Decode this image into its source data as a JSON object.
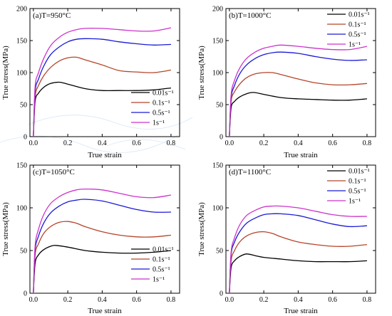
{
  "figure": {
    "background": "#ffffff",
    "series_colors": [
      "#000000",
      "#b5452a",
      "#1a1ad6",
      "#cc33cc"
    ],
    "watermark_color": "#b8d4f0"
  },
  "chart_data": [
    {
      "type": "line",
      "title": "(a)T=950°C",
      "xlabel": "True strain",
      "ylabel": "True stress(MPa)",
      "xlim": [
        -0.02,
        0.85
      ],
      "ylim": [
        0,
        200
      ],
      "xticks": [
        0.0,
        0.2,
        0.4,
        0.6,
        0.8
      ],
      "xtick_labels": [
        "0.0",
        "0.2",
        "0.4",
        "0.6",
        "0.8"
      ],
      "yticks": [
        0,
        50,
        100,
        150,
        200
      ],
      "ytick_labels": [
        "0",
        "50",
        "100",
        "150",
        "200"
      ],
      "legend_position": "bottom-right",
      "series": [
        {
          "name": "0.01s⁻¹",
          "color": "#000000",
          "x": [
            0.0,
            0.01,
            0.03,
            0.06,
            0.1,
            0.15,
            0.2,
            0.3,
            0.4,
            0.5,
            0.6,
            0.7,
            0.8
          ],
          "y": [
            0,
            55,
            68,
            77,
            83,
            85,
            82,
            75,
            72,
            72,
            72,
            73,
            76
          ]
        },
        {
          "name": "0.1s⁻¹",
          "color": "#b5452a",
          "x": [
            0.0,
            0.01,
            0.03,
            0.06,
            0.1,
            0.15,
            0.2,
            0.25,
            0.3,
            0.4,
            0.5,
            0.6,
            0.7,
            0.8
          ],
          "y": [
            0,
            62,
            80,
            95,
            108,
            118,
            123,
            124,
            120,
            112,
            103,
            101,
            100,
            104
          ]
        },
        {
          "name": "0.5s⁻¹",
          "color": "#1a1ad6",
          "x": [
            0.0,
            0.01,
            0.03,
            0.06,
            0.1,
            0.15,
            0.2,
            0.25,
            0.3,
            0.4,
            0.5,
            0.6,
            0.7,
            0.8
          ],
          "y": [
            0,
            70,
            90,
            110,
            128,
            140,
            148,
            152,
            153,
            152,
            148,
            145,
            143,
            144
          ]
        },
        {
          "name": "1s⁻¹",
          "color": "#cc33cc",
          "x": [
            0.0,
            0.01,
            0.03,
            0.06,
            0.1,
            0.15,
            0.2,
            0.25,
            0.3,
            0.4,
            0.5,
            0.6,
            0.7,
            0.8
          ],
          "y": [
            0,
            78,
            100,
            122,
            142,
            155,
            163,
            167,
            169,
            169,
            167,
            165,
            165,
            170
          ]
        }
      ]
    },
    {
      "type": "line",
      "title": "(b)T=1000°C",
      "xlabel": "True strain",
      "ylabel": "True stress(MPa)",
      "xlim": [
        -0.02,
        0.85
      ],
      "ylim": [
        0,
        200
      ],
      "xticks": [
        0.0,
        0.2,
        0.4,
        0.6,
        0.8
      ],
      "xtick_labels": [
        "0.0",
        "0.2",
        "0.4",
        "0.6",
        "0.8"
      ],
      "yticks": [
        0,
        50,
        100,
        150,
        200
      ],
      "ytick_labels": [
        "0",
        "50",
        "100",
        "150",
        "200"
      ],
      "legend_position": "top-right",
      "series": [
        {
          "name": "0.01s⁻¹",
          "color": "#000000",
          "x": [
            0.0,
            0.01,
            0.03,
            0.06,
            0.1,
            0.14,
            0.2,
            0.3,
            0.4,
            0.5,
            0.6,
            0.7,
            0.8
          ],
          "y": [
            0,
            45,
            55,
            62,
            67,
            69,
            66,
            61,
            59,
            58,
            57,
            57,
            59
          ]
        },
        {
          "name": "0.1s⁻¹",
          "color": "#b5452a",
          "x": [
            0.0,
            0.01,
            0.03,
            0.06,
            0.1,
            0.15,
            0.2,
            0.25,
            0.3,
            0.4,
            0.5,
            0.6,
            0.7,
            0.8
          ],
          "y": [
            0,
            55,
            70,
            82,
            92,
            98,
            100,
            100,
            97,
            90,
            84,
            81,
            81,
            83
          ]
        },
        {
          "name": "0.5s⁻¹",
          "color": "#1a1ad6",
          "x": [
            0.0,
            0.01,
            0.03,
            0.06,
            0.1,
            0.15,
            0.2,
            0.25,
            0.3,
            0.4,
            0.5,
            0.6,
            0.7,
            0.8
          ],
          "y": [
            0,
            60,
            80,
            98,
            112,
            122,
            128,
            131,
            132,
            130,
            125,
            121,
            119,
            120
          ]
        },
        {
          "name": "1s⁻¹",
          "color": "#cc33cc",
          "x": [
            0.0,
            0.01,
            0.03,
            0.06,
            0.1,
            0.15,
            0.2,
            0.25,
            0.3,
            0.4,
            0.5,
            0.6,
            0.7,
            0.8
          ],
          "y": [
            0,
            65,
            88,
            107,
            122,
            132,
            138,
            141,
            143,
            141,
            138,
            136,
            136,
            141
          ]
        }
      ]
    },
    {
      "type": "line",
      "title": "(c)T=1050°C",
      "xlabel": "True strain",
      "ylabel": "True stress(MPa)",
      "xlim": [
        -0.02,
        0.85
      ],
      "ylim": [
        0,
        150
      ],
      "xticks": [
        0.0,
        0.2,
        0.4,
        0.6,
        0.8
      ],
      "xtick_labels": [
        "0.0",
        "0.2",
        "0.4",
        "0.6",
        "0.8"
      ],
      "yticks": [
        0,
        50,
        100,
        150
      ],
      "ytick_labels": [
        "0",
        "50",
        "100",
        "150"
      ],
      "legend_position": "bottom-right",
      "series": [
        {
          "name": "0.01s⁻¹",
          "color": "#000000",
          "x": [
            0.0,
            0.01,
            0.03,
            0.06,
            0.1,
            0.13,
            0.2,
            0.3,
            0.4,
            0.5,
            0.6,
            0.7,
            0.8
          ],
          "y": [
            0,
            35,
            45,
            51,
            55,
            56,
            54,
            50,
            48,
            47,
            47,
            48,
            50
          ]
        },
        {
          "name": "0.1s⁻¹",
          "color": "#b5452a",
          "x": [
            0.0,
            0.01,
            0.03,
            0.06,
            0.1,
            0.15,
            0.2,
            0.25,
            0.3,
            0.4,
            0.5,
            0.6,
            0.7,
            0.8
          ],
          "y": [
            0,
            45,
            58,
            70,
            78,
            83,
            84,
            82,
            78,
            72,
            68,
            66,
            66,
            68
          ]
        },
        {
          "name": "0.5s⁻¹",
          "color": "#1a1ad6",
          "x": [
            0.0,
            0.01,
            0.03,
            0.06,
            0.1,
            0.15,
            0.2,
            0.25,
            0.3,
            0.4,
            0.5,
            0.6,
            0.7,
            0.8
          ],
          "y": [
            0,
            50,
            67,
            82,
            94,
            102,
            107,
            109,
            110,
            108,
            103,
            98,
            95,
            95
          ]
        },
        {
          "name": "1s⁻¹",
          "color": "#cc33cc",
          "x": [
            0.0,
            0.01,
            0.03,
            0.06,
            0.1,
            0.15,
            0.2,
            0.25,
            0.3,
            0.4,
            0.5,
            0.6,
            0.7,
            0.8
          ],
          "y": [
            0,
            55,
            75,
            92,
            105,
            113,
            118,
            121,
            122,
            121,
            117,
            113,
            112,
            115
          ]
        }
      ]
    },
    {
      "type": "line",
      "title": "(d)T=1100°C",
      "xlabel": "True strain",
      "ylabel": "True stress(MPa)",
      "xlim": [
        -0.02,
        0.85
      ],
      "ylim": [
        0,
        150
      ],
      "xticks": [
        0.0,
        0.2,
        0.4,
        0.6,
        0.8
      ],
      "xtick_labels": [
        "0.0",
        "0.2",
        "0.4",
        "0.6",
        "0.8"
      ],
      "yticks": [
        0,
        50,
        100,
        150
      ],
      "ytick_labels": [
        "0",
        "50",
        "100",
        "150"
      ],
      "legend_position": "top-right",
      "series": [
        {
          "name": "0.01s⁻¹",
          "color": "#000000",
          "x": [
            0.0,
            0.01,
            0.03,
            0.06,
            0.1,
            0.15,
            0.2,
            0.3,
            0.4,
            0.5,
            0.6,
            0.7,
            0.8
          ],
          "y": [
            0,
            30,
            38,
            43,
            46,
            44,
            42,
            40,
            38,
            37,
            37,
            37,
            38
          ]
        },
        {
          "name": "0.1s⁻¹",
          "color": "#b5452a",
          "x": [
            0.0,
            0.01,
            0.03,
            0.06,
            0.1,
            0.15,
            0.2,
            0.25,
            0.3,
            0.4,
            0.5,
            0.6,
            0.7,
            0.8
          ],
          "y": [
            0,
            38,
            50,
            60,
            67,
            71,
            72,
            70,
            66,
            60,
            57,
            55,
            55,
            57
          ]
        },
        {
          "name": "0.5s⁻¹",
          "color": "#1a1ad6",
          "x": [
            0.0,
            0.01,
            0.03,
            0.06,
            0.1,
            0.15,
            0.2,
            0.25,
            0.3,
            0.4,
            0.5,
            0.6,
            0.7,
            0.8
          ],
          "y": [
            0,
            45,
            60,
            72,
            82,
            88,
            92,
            93,
            93,
            91,
            86,
            81,
            78,
            79
          ]
        },
        {
          "name": "1s⁻¹",
          "color": "#cc33cc",
          "x": [
            0.0,
            0.01,
            0.03,
            0.06,
            0.1,
            0.15,
            0.2,
            0.25,
            0.3,
            0.4,
            0.5,
            0.6,
            0.7,
            0.8
          ],
          "y": [
            0,
            48,
            65,
            80,
            91,
            97,
            101,
            102,
            102,
            100,
            96,
            92,
            90,
            90
          ]
        }
      ]
    }
  ]
}
